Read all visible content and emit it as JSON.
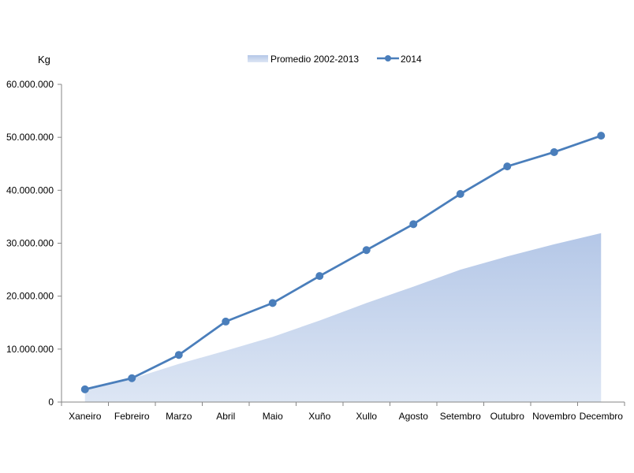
{
  "chart_data": {
    "type": "line",
    "ylabel": "Kg",
    "ylim": [
      0,
      60000000
    ],
    "y_ticks": [
      0,
      10000000,
      20000000,
      30000000,
      40000000,
      50000000,
      60000000
    ],
    "y_tick_labels": [
      "0",
      "10.000.000",
      "20.000.000",
      "30.000.000",
      "40.000.000",
      "50.000.000",
      "60.000.000"
    ],
    "categories": [
      "Xaneiro",
      "Febreiro",
      "Marzo",
      "Abril",
      "Maio",
      "Xuño",
      "Xullo",
      "Agosto",
      "Setembro",
      "Outubro",
      "Novembro",
      "Decembro"
    ],
    "series": [
      {
        "name": "Promedio 2002-2013",
        "kind": "area",
        "color": "#b4c7e7",
        "values": [
          2300000,
          4400000,
          7200000,
          9700000,
          12300000,
          15400000,
          18700000,
          21800000,
          25000000,
          27500000,
          29800000,
          31900000
        ]
      },
      {
        "name": "2014",
        "kind": "line-markers",
        "color": "#4a7ebb",
        "values": [
          2400000,
          4500000,
          8900000,
          15200000,
          18700000,
          23800000,
          28700000,
          33600000,
          39300000,
          44500000,
          47200000,
          50300000
        ]
      }
    ],
    "legend_position": "top-center",
    "grid": false
  }
}
